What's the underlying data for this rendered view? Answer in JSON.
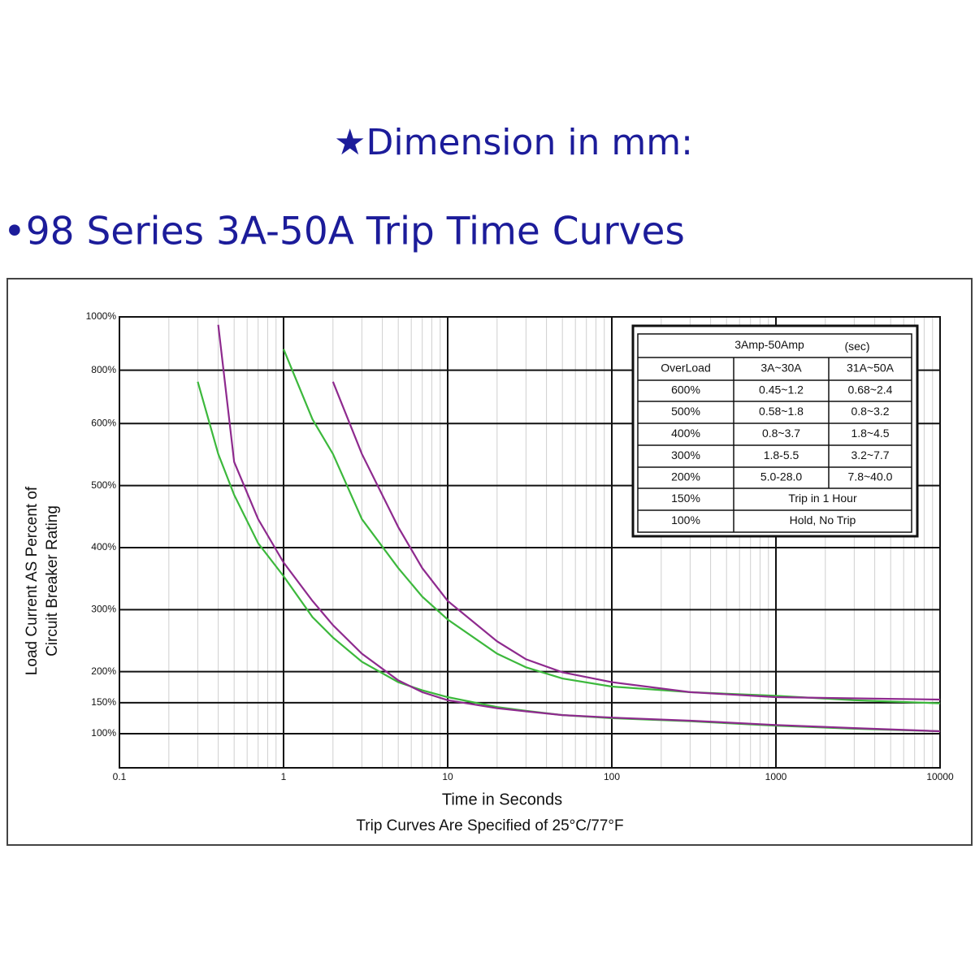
{
  "header": {
    "dimension": "★Dimension in mm:",
    "series_title": "•98 Series 3A-50A Trip Time Curves"
  },
  "chart_data": {
    "type": "line",
    "x_label": "Time in Seconds",
    "note": "Trip Curves Are Specified of 25°C/77°F",
    "y_label": [
      "Load Current AS Percent of",
      "Circuit Breaker Rating"
    ],
    "x_scale": "log",
    "grid": true,
    "x": [
      0.2,
      0.25,
      0.3,
      0.4,
      0.5,
      0.7,
      1,
      1.5,
      2,
      3,
      5,
      7,
      10,
      20,
      30,
      50,
      100,
      300,
      1000,
      3000,
      10000
    ],
    "series": [
      {
        "color": "#3cb83c",
        "values": [
          null,
          null,
          757,
          551,
          485,
          407,
          354,
          288,
          255,
          216,
          183,
          170,
          159,
          143,
          137,
          130,
          125,
          120,
          113,
          108,
          104
        ]
      },
      {
        "color": "#8e2a8e",
        "values": [
          null,
          null,
          null,
          970,
          538,
          446,
          376,
          314,
          275,
          229,
          186,
          167,
          154,
          141,
          136,
          130,
          126,
          121,
          114,
          109,
          104
        ]
      },
      {
        "color": "#3cb83c",
        "values": [
          null,
          null,
          null,
          null,
          null,
          null,
          879,
          616,
          551,
          446,
          367,
          321,
          284,
          229,
          207,
          189,
          176,
          167,
          161,
          154,
          149
        ]
      },
      {
        "color": "#8e2a8e",
        "values": [
          null,
          null,
          null,
          null,
          null,
          null,
          null,
          null,
          757,
          551,
          433,
          367,
          314,
          249,
          220,
          199,
          183,
          167,
          159,
          157,
          155
        ]
      }
    ],
    "xlim": [
      0.1,
      10000
    ],
    "xticks": [
      0.1,
      1,
      10,
      100,
      1000,
      10000
    ],
    "ylim": [
      45,
      1000
    ],
    "yticks": [
      {
        "value": 100,
        "label": "100%"
      },
      {
        "value": 150,
        "label": "150%"
      },
      {
        "value": 200,
        "label": "200%"
      },
      {
        "value": 300,
        "label": "300%"
      },
      {
        "value": 400,
        "label": "400%"
      },
      {
        "value": 500,
        "label": "500%"
      },
      {
        "value": 600,
        "label": "600%"
      },
      {
        "value": 800,
        "label": "800%"
      },
      {
        "value": 1000,
        "label": "1000%"
      }
    ],
    "table": {
      "title": "3Amp-50Amp",
      "unit": "(sec)",
      "header": [
        "OverLoad",
        "3A~30A",
        "31A~50A"
      ],
      "rows": [
        [
          "600%",
          "0.45~1.2",
          "0.68~2.4"
        ],
        [
          "500%",
          "0.58~1.8",
          "0.8~3.2"
        ],
        [
          "400%",
          "0.8~3.7",
          "1.8~4.5"
        ],
        [
          "300%",
          "1.8-5.5",
          "3.2~7.7"
        ],
        [
          "200%",
          "5.0-28.0",
          "7.8~40.0"
        ],
        [
          "150%",
          "Trip in 1 Hour"
        ],
        [
          "100%",
          "Hold, No Trip"
        ]
      ]
    }
  }
}
